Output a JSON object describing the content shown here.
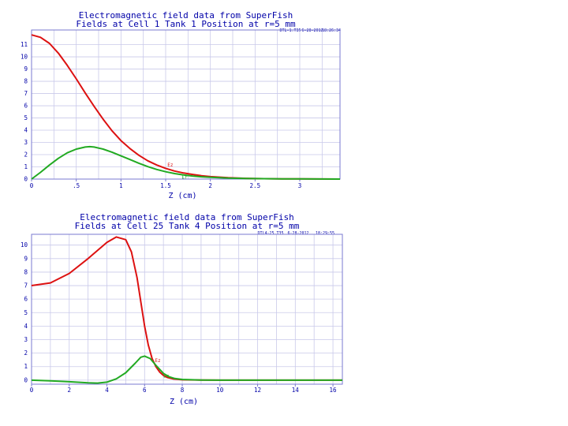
{
  "chart_data": [
    {
      "type": "line",
      "title": "Electromagnetic field data from SuperFish",
      "subtitle": "Fields at Cell 1 Tank 1 Position at r=5 mm",
      "run_info": [
        "DTL-1.T35",
        "6-28-2012",
        "18:26:34"
      ],
      "xlabel": "Z (cm)",
      "ylabel": "",
      "xlim": [
        0,
        3.45
      ],
      "ylim": [
        0,
        12.2
      ],
      "x_ticks": [
        0,
        0.5,
        1,
        1.5,
        2,
        2.5,
        3
      ],
      "x_tick_labels": [
        "0",
        ".5",
        "1",
        "1.5",
        "2",
        "2.5",
        "3"
      ],
      "y_ticks": [
        0,
        1,
        2,
        3,
        4,
        5,
        6,
        7,
        8,
        9,
        10,
        11
      ],
      "grid": true,
      "series": [
        {
          "name": "Ez",
          "color": "#dd1111",
          "label_at": 1.52,
          "x": [
            0,
            0.1,
            0.2,
            0.3,
            0.4,
            0.5,
            0.6,
            0.7,
            0.8,
            0.9,
            1.0,
            1.1,
            1.2,
            1.3,
            1.4,
            1.5,
            1.6,
            1.7,
            1.8,
            1.9,
            2.0,
            2.2,
            2.4,
            2.6,
            2.8,
            3.0,
            3.2,
            3.45
          ],
          "values": [
            11.8,
            11.6,
            11.1,
            10.3,
            9.3,
            8.2,
            7.05,
            5.95,
            4.9,
            3.95,
            3.15,
            2.5,
            1.95,
            1.5,
            1.15,
            0.88,
            0.66,
            0.5,
            0.38,
            0.28,
            0.2,
            0.11,
            0.06,
            0.03,
            0.02,
            0.01,
            0.005,
            0.0
          ]
        },
        {
          "name": "Er",
          "color": "#22aa22",
          "label_at": 1.68,
          "x": [
            0,
            0.1,
            0.2,
            0.3,
            0.4,
            0.5,
            0.6,
            0.65,
            0.7,
            0.8,
            0.9,
            1.0,
            1.1,
            1.2,
            1.3,
            1.4,
            1.5,
            1.6,
            1.7,
            1.8,
            1.9,
            2.0,
            2.2,
            2.4,
            2.6,
            2.8,
            3.0,
            3.45
          ],
          "values": [
            0.0,
            0.55,
            1.15,
            1.7,
            2.15,
            2.45,
            2.62,
            2.65,
            2.62,
            2.45,
            2.2,
            1.9,
            1.6,
            1.3,
            1.02,
            0.79,
            0.6,
            0.45,
            0.34,
            0.25,
            0.19,
            0.14,
            0.08,
            0.05,
            0.03,
            0.02,
            0.01,
            0.0
          ]
        }
      ]
    },
    {
      "type": "line",
      "title": "Electromagnetic field data from SuperFish",
      "subtitle": "Fields at Cell 25 Tank 4 Position at r=5 mm",
      "run_info": [
        "DTL4-25.T35",
        "6-28-2012",
        "18:29:55"
      ],
      "xlabel": "Z (cm)",
      "ylabel": "",
      "xlim": [
        0,
        16.5
      ],
      "ylim": [
        -0.3,
        10.8
      ],
      "x_ticks": [
        0,
        2,
        4,
        6,
        8,
        10,
        12,
        14,
        16
      ],
      "x_tick_labels": [
        "0",
        "2",
        "4",
        "6",
        "8",
        "10",
        "12",
        "14",
        "16"
      ],
      "y_ticks": [
        0,
        1,
        2,
        3,
        4,
        5,
        6,
        7,
        8,
        9,
        10
      ],
      "grid": true,
      "series": [
        {
          "name": "Ez",
          "color": "#dd1111",
          "label_at": 6.55,
          "x": [
            0,
            1,
            2,
            3,
            4,
            4.5,
            5,
            5.3,
            5.6,
            5.8,
            6.0,
            6.2,
            6.4,
            6.6,
            6.8,
            7.0,
            7.2,
            7.5,
            8.0,
            9.0,
            10,
            12,
            14,
            16.5
          ],
          "values": [
            7.0,
            7.2,
            7.9,
            9.0,
            10.2,
            10.6,
            10.4,
            9.5,
            7.6,
            5.8,
            4.0,
            2.6,
            1.6,
            1.0,
            0.6,
            0.35,
            0.2,
            0.1,
            0.03,
            0.01,
            0.0,
            0.0,
            0.0,
            0.0
          ]
        },
        {
          "name": "Er",
          "color": "#22aa22",
          "label_at": 7.0,
          "x": [
            0,
            1,
            2,
            3,
            3.5,
            4,
            4.5,
            5,
            5.5,
            5.8,
            6.0,
            6.3,
            6.6,
            7.0,
            7.3,
            7.6,
            8.0,
            9.0,
            10,
            12,
            14,
            16.5
          ],
          "values": [
            0.0,
            -0.05,
            -0.12,
            -0.2,
            -0.22,
            -0.15,
            0.1,
            0.55,
            1.25,
            1.7,
            1.78,
            1.6,
            1.1,
            0.5,
            0.25,
            0.12,
            0.05,
            0.01,
            0.0,
            0.0,
            0.0,
            0.0
          ]
        }
      ]
    }
  ]
}
